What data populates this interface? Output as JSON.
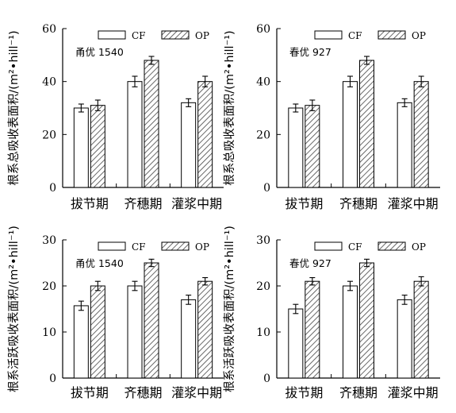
{
  "chart_data": [
    {
      "type": "bar",
      "annotation": "甬优 1540",
      "ylabel": "根系总吸收表面积/(m²•hill⁻¹)",
      "ylim": [
        0,
        60
      ],
      "yticks": [
        "0",
        "20",
        "40",
        "60"
      ],
      "categories": [
        "拔节期",
        "齐穗期",
        "灌浆中期"
      ],
      "legend_position": "top-right",
      "series": [
        {
          "name": "CF",
          "fill": "white",
          "values": [
            30,
            40,
            32
          ],
          "errors": [
            1.5,
            2,
            1.5
          ]
        },
        {
          "name": "OP",
          "fill": "hatch",
          "values": [
            31,
            48,
            40
          ],
          "errors": [
            2,
            1.5,
            2
          ]
        }
      ]
    },
    {
      "type": "bar",
      "annotation": "春优 927",
      "ylabel": "根系总吸收表面积/(m²•hill⁻¹)",
      "ylim": [
        0,
        60
      ],
      "yticks": [
        "0",
        "20",
        "40",
        "60"
      ],
      "categories": [
        "拔节期",
        "齐穗期",
        "灌浆中期"
      ],
      "legend_position": "top-right",
      "series": [
        {
          "name": "CF",
          "fill": "white",
          "values": [
            30,
            40,
            32
          ],
          "errors": [
            1.5,
            2,
            1.5
          ]
        },
        {
          "name": "OP",
          "fill": "hatch",
          "values": [
            31,
            48,
            40
          ],
          "errors": [
            2,
            1.5,
            2
          ]
        }
      ]
    },
    {
      "type": "bar",
      "annotation": "甬优 1540",
      "ylabel": "根系活跃吸收表面积/(m²•hill⁻¹)",
      "ylim": [
        0,
        30
      ],
      "yticks": [
        "0",
        "10",
        "20",
        "30"
      ],
      "categories": [
        "拔节期",
        "齐穗期",
        "灌浆中期"
      ],
      "legend_position": "top-right",
      "series": [
        {
          "name": "CF",
          "fill": "white",
          "values": [
            15.7,
            20,
            17
          ],
          "errors": [
            1,
            1,
            1
          ]
        },
        {
          "name": "OP",
          "fill": "hatch",
          "values": [
            20,
            25,
            21
          ],
          "errors": [
            1,
            0.8,
            0.8
          ]
        }
      ]
    },
    {
      "type": "bar",
      "annotation": "春优 927",
      "ylabel": "根系活跃吸收表面积/(m²•hill⁻¹)",
      "ylim": [
        0,
        30
      ],
      "yticks": [
        "0",
        "10",
        "20",
        "30"
      ],
      "categories": [
        "拔节期",
        "齐穗期",
        "灌浆中期"
      ],
      "legend_position": "top-right",
      "series": [
        {
          "name": "CF",
          "fill": "white",
          "values": [
            15,
            20,
            17
          ],
          "errors": [
            1,
            1,
            1
          ]
        },
        {
          "name": "OP",
          "fill": "hatch",
          "values": [
            21,
            25,
            21
          ],
          "errors": [
            0.8,
            0.8,
            1
          ]
        }
      ]
    }
  ]
}
